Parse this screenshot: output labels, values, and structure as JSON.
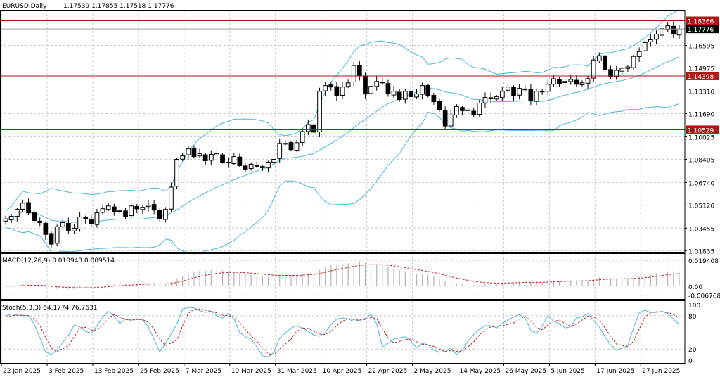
{
  "colors": {
    "background": "#ffffff",
    "grid": "#c8c8c8",
    "frame": "#000000",
    "candle_bull_body": "#ffffff",
    "candle_bear_body": "#000000",
    "bollinger": "#4bb8d8",
    "level_line": "#b01515",
    "level_label_bg": "#b01515",
    "macd_hist": "#b4b4b4",
    "macd_signal": "#c02020",
    "stoch_main": "#4bb8d8",
    "stoch_signal": "#c02020"
  },
  "chart_data": [
    {
      "panel": "price",
      "type": "candlestick",
      "title": "EURUSD,Daily",
      "ohlc_header": "1.17539 1.17855 1.17518 1.17776",
      "ylim": [
        1.0175,
        1.1915
      ],
      "y_ticks": [
        "1.16595",
        "1.14975",
        "1.13310",
        "1.11690",
        "1.10025",
        "1.08405",
        "1.06740",
        "1.05120",
        "1.03455",
        "1.01835"
      ],
      "y_tick_values": [
        1.16595,
        1.14975,
        1.1331,
        1.1169,
        1.10025,
        1.08405,
        1.0674,
        1.0512,
        1.03455,
        1.01835
      ],
      "x_labels": [
        "22 Jan 2025",
        "3 Feb 2025",
        "13 Feb 2025",
        "25 Feb 2025",
        "7 Mar 2025",
        "19 Mar 2025",
        "31 Mar 2025",
        "10 Apr 2025",
        "22 Apr 2025",
        "2 May 2025",
        "14 May 2025",
        "26 May 2025",
        "5 Jun 2025",
        "17 Jun 2025",
        "27 Jun 2025"
      ],
      "x_label_bars": [
        0,
        8,
        16,
        24,
        32,
        40,
        48,
        56,
        64,
        72,
        80,
        88,
        96,
        104,
        112
      ],
      "last_price_label": "1.17776",
      "last_price": 1.17776,
      "levels": [
        {
          "value": 1.18366,
          "label": "1.18366"
        },
        {
          "value": 1.14398,
          "label": "1.14398"
        },
        {
          "value": 1.10529,
          "label": "1.10529"
        }
      ],
      "series": [
        {
          "name": "",
          "type": "candlestick",
          "closes": [
            1.0411,
            1.043,
            1.048,
            1.0525,
            1.0455,
            1.04,
            1.0385,
            1.03,
            1.023,
            1.0355,
            1.0385,
            1.033,
            1.0345,
            1.0425,
            1.041,
            1.0375,
            1.0455,
            1.0485,
            1.0505,
            1.0465,
            1.047,
            1.043,
            1.0505,
            1.0485,
            1.0495,
            1.051,
            1.0475,
            1.041,
            1.048,
            1.064,
            1.084,
            1.0865,
            1.0915,
            1.086,
            1.088,
            1.083,
            1.0875,
            1.088,
            1.082,
            1.0815,
            1.086,
            1.0795,
            1.077,
            1.0805,
            1.079,
            1.078,
            1.082,
            1.084,
            1.0955,
            1.0955,
            1.091,
            1.096,
            1.104,
            1.109,
            1.1035,
            1.133,
            1.137,
            1.136,
            1.13,
            1.136,
            1.139,
            1.1515,
            1.144,
            1.131,
            1.1365,
            1.14,
            1.139,
            1.131,
            1.133,
            1.127,
            1.133,
            1.129,
            1.131,
            1.137,
            1.13,
            1.1255,
            1.1195,
            1.108,
            1.116,
            1.122,
            1.119,
            1.119,
            1.116,
            1.1245,
            1.1285,
            1.1275,
            1.129,
            1.133,
            1.136,
            1.13,
            1.135,
            1.134,
            1.126,
            1.133,
            1.1325,
            1.138,
            1.142,
            1.1385,
            1.14,
            1.1415,
            1.138,
            1.139,
            1.142,
            1.1555,
            1.1585,
            1.1485,
            1.1435,
            1.148,
            1.1495,
            1.1505,
            1.158,
            1.1615,
            1.168,
            1.17,
            1.174,
            1.178,
            1.18,
            1.174,
            1.1778
          ],
          "range_start": 1.0411,
          "colors_note": ""
        }
      ],
      "bollinger": {
        "upper_ref": [
          1.03,
          1.05,
          1.065,
          1.101,
          1.167,
          1.165,
          1.162,
          1.161,
          1.176,
          1.192,
          1.195,
          1.199
        ],
        "lower_ref": [
          1.02,
          1.024,
          1.025,
          1.028,
          1.03,
          1.065,
          1.07,
          1.058,
          1.07,
          1.08,
          1.103,
          1.127
        ]
      }
    },
    {
      "panel": "macd",
      "type": "bar+line",
      "title": "MACD(12,26,9) 0.010943 0.009514",
      "y_ticks": [
        "0.019408",
        "0.00",
        "-0.006768"
      ],
      "y_tick_values": [
        0.019408,
        0.0,
        -0.006768
      ],
      "ylim": [
        -0.0075,
        0.0205
      ],
      "series": [
        {
          "name": "",
          "type": "histogram"
        },
        {
          "name": "",
          "type": "line"
        }
      ]
    },
    {
      "panel": "stoch",
      "type": "line",
      "title": "Stoch(5,3,3) 64.1774 76.7631",
      "y_ticks": [
        "100",
        "80",
        "20",
        "0"
      ],
      "y_tick_values": [
        100,
        80,
        20,
        0
      ],
      "ylim": [
        0,
        100
      ],
      "series": [
        {
          "name": "",
          "values": [
            80,
            83,
            81,
            80,
            80,
            65,
            40,
            15,
            10,
            18,
            45,
            63,
            60,
            52,
            48,
            62,
            78,
            88,
            80,
            66,
            74,
            72,
            74,
            72,
            60,
            38,
            15,
            30,
            65,
            92,
            95,
            94,
            89,
            86,
            88,
            80,
            76,
            84,
            74,
            50,
            42,
            38,
            24,
            8,
            6,
            14,
            40,
            58,
            62,
            58,
            52,
            45,
            43,
            50,
            64,
            74,
            76,
            74,
            70,
            72,
            76,
            82,
            66,
            24,
            30,
            38,
            42,
            34,
            22,
            30,
            28,
            18,
            14,
            16,
            22,
            10,
            18,
            34,
            46,
            56,
            62,
            62,
            58,
            66,
            78,
            82,
            76,
            54,
            48,
            62,
            80,
            70,
            66,
            58,
            60,
            76,
            78,
            84,
            72,
            60,
            42,
            28,
            18,
            26,
            58,
            85,
            90,
            86,
            86,
            88,
            84,
            74,
            64
          ]
        },
        {
          "name": "",
          "values": [
            78,
            80,
            81,
            81,
            80,
            75,
            62,
            40,
            22,
            15,
            26,
            42,
            58,
            59,
            54,
            54,
            63,
            76,
            82,
            78,
            73,
            72,
            73,
            73,
            68,
            56,
            38,
            26,
            36,
            62,
            84,
            92,
            92,
            90,
            88,
            85,
            81,
            80,
            78,
            68,
            55,
            44,
            34,
            22,
            12,
            9,
            20,
            38,
            52,
            58,
            57,
            52,
            47,
            46,
            52,
            62,
            70,
            75,
            73,
            72,
            73,
            77,
            75,
            57,
            40,
            31,
            37,
            38,
            33,
            29,
            27,
            25,
            20,
            16,
            17,
            16,
            16,
            24,
            33,
            45,
            55,
            60,
            61,
            62,
            67,
            74,
            79,
            71,
            59,
            55,
            63,
            70,
            72,
            66,
            61,
            65,
            72,
            79,
            78,
            72,
            58,
            43,
            29,
            24,
            34,
            56,
            77,
            86,
            87,
            87,
            86,
            82,
            76
          ]
        }
      ]
    }
  ]
}
